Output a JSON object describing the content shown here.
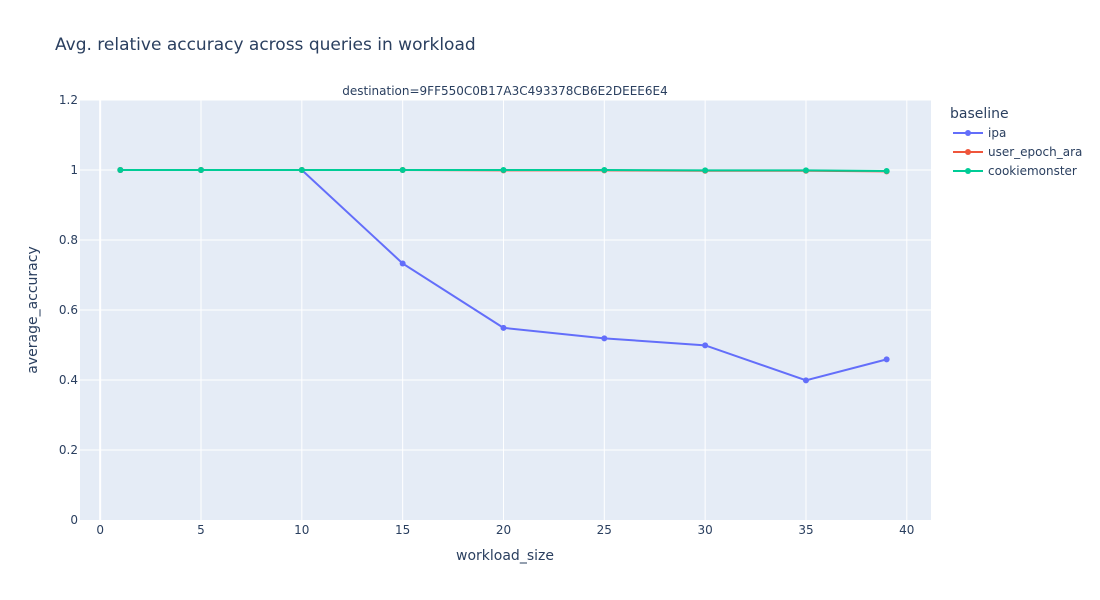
{
  "chart_data": {
    "type": "line",
    "title": "Avg. relative accuracy across queries in workload",
    "subtitle": "destination=9FF550C0B17A3C493378CB6E2DEEE6E4",
    "xlabel": "workload_size",
    "ylabel": "average_accuracy",
    "xlim": [
      -1,
      41.2
    ],
    "ylim": [
      0,
      1.2
    ],
    "x_ticks": [
      0,
      5,
      10,
      15,
      20,
      25,
      30,
      35,
      40
    ],
    "y_ticks": [
      0,
      0.2,
      0.4,
      0.6,
      0.8,
      1,
      1.2
    ],
    "x_tick_labels": [
      "0",
      "5",
      "10",
      "15",
      "20",
      "25",
      "30",
      "35",
      "40"
    ],
    "y_tick_labels": [
      "0",
      "0.2",
      "0.4",
      "0.6",
      "0.8",
      "1",
      "1.2"
    ],
    "grid": true,
    "legend_title": "baseline",
    "legend_position": "right",
    "series": [
      {
        "name": "ipa",
        "color": "#636efa",
        "x": [
          1,
          5,
          10,
          15,
          20,
          25,
          30,
          35,
          39
        ],
        "y": [
          1,
          1,
          1,
          0.733,
          0.549,
          0.519,
          0.499,
          0.399,
          0.459
        ]
      },
      {
        "name": "user_epoch_ara",
        "color": "#ef553b",
        "x": [
          1,
          5,
          10,
          15,
          20,
          25,
          30,
          35,
          39
        ],
        "y": [
          1,
          1,
          1,
          1,
          0.999,
          0.999,
          0.998,
          0.998,
          0.996
        ]
      },
      {
        "name": "cookiemonster",
        "color": "#00cc96",
        "x": [
          1,
          5,
          10,
          15,
          20,
          25,
          30,
          35,
          39
        ],
        "y": [
          1,
          1,
          1,
          1,
          1,
          1,
          0.999,
          0.999,
          0.997
        ]
      }
    ]
  }
}
